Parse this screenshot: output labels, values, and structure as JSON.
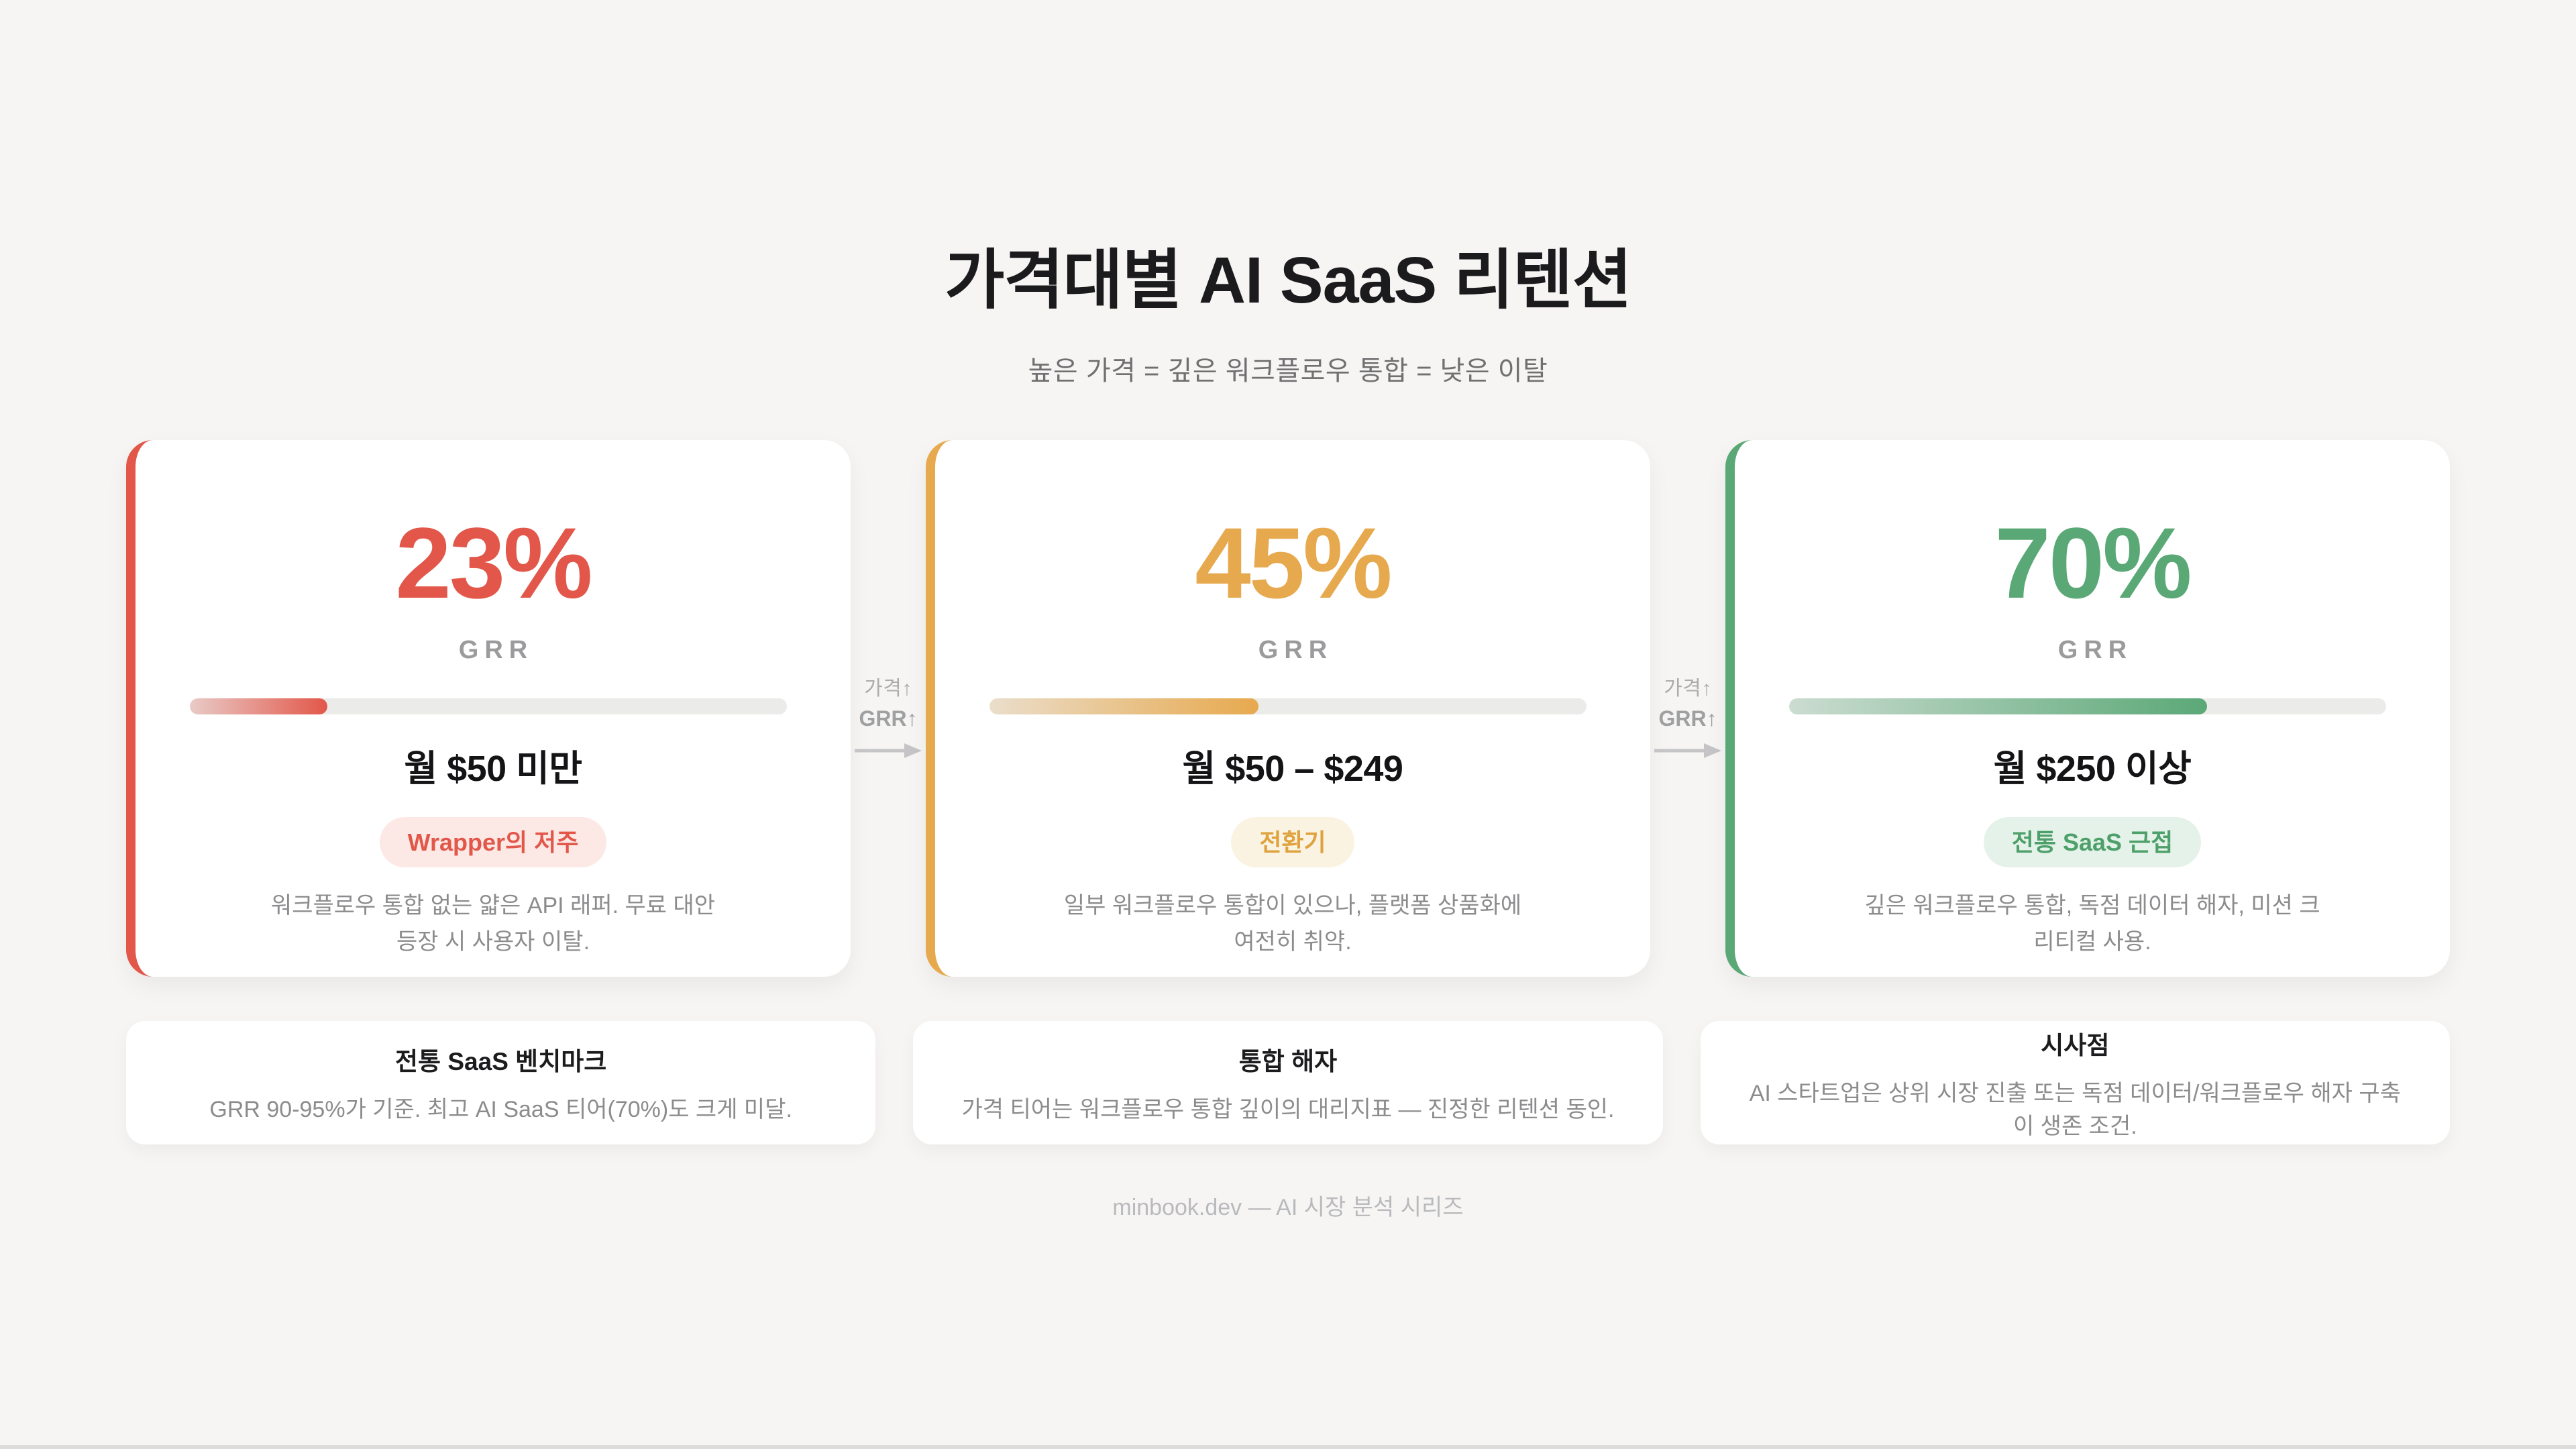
{
  "header": {
    "title": "가격대별 AI SaaS 리텐션",
    "subtitle": "높은 가격 = 깊은 워크플로우 통합 = 낮은 이탈"
  },
  "tiers": [
    {
      "grr_value": "23%",
      "grr_label": "GRR",
      "progress_pct": 23,
      "price": "월 $50 미만",
      "badge": "Wrapper의 저주",
      "description": "워크플로우 통합 없는 얇은 API 래퍼. 무료 대안 등장 시 사용자 이탈.",
      "accent_color": "#E2574A",
      "badge_bg": "#FCE9E5"
    },
    {
      "grr_value": "45%",
      "grr_label": "GRR",
      "progress_pct": 45,
      "price": "월 $50 – $249",
      "badge": "전환기",
      "description": "일부 워크플로우 통합이 있으나, 플랫폼 상품화에 여전히 취약.",
      "accent_color": "#E7A94E",
      "badge_bg": "#FAF3E1"
    },
    {
      "grr_value": "70%",
      "grr_label": "GRR",
      "progress_pct": 70,
      "price": "월 $250 이상",
      "badge": "전통 SaaS 근접",
      "description": "깊은 워크플로우 통합, 독점 데이터 해자, 미션 크리티컬 사용.",
      "accent_color": "#5BA877",
      "badge_bg": "#E5F2E9"
    }
  ],
  "connector": {
    "line1": "가격↑",
    "line2": "GRR↑"
  },
  "insights": [
    {
      "title": "전통 SaaS 벤치마크",
      "body": "GRR 90-95%가 기준. 최고 AI SaaS 티어(70%)도 크게 미달."
    },
    {
      "title": "통합 해자",
      "body": "가격 티어는 워크플로우 통합 깊이의 대리지표 — 진정한 리텐션 동인."
    },
    {
      "title": "시사점",
      "body": "AI 스타트업은 상위 시장 진출 또는 독점 데이터/워크플로우 해자 구축이 생존 조건."
    }
  ],
  "footer": "minbook.dev — AI 시장 분석 시리즈",
  "colors": {
    "background": "#F6F5F3",
    "card": "#FFFFFF",
    "red": "#E2574A",
    "amber": "#E7A94E",
    "green": "#5BA877",
    "track": "#EBEBEA",
    "text_dark": "#1B1B1D",
    "text_gray": "#8C8C8E"
  },
  "chart_data": {
    "type": "bar",
    "title": "가격대별 AI SaaS 리텐션",
    "subtitle": "높은 가격 = 깊은 워크플로우 통합 = 낮은 이탈",
    "categories": [
      "월 $50 미만",
      "월 $50 – $249",
      "월 $250 이상"
    ],
    "values": [
      23,
      45,
      70
    ],
    "unit": "% GRR",
    "ylim": [
      0,
      100
    ],
    "annotations": [
      "Wrapper의 저주",
      "전환기",
      "전통 SaaS 근접"
    ],
    "benchmark_note": "전통 SaaS GRR 90-95%",
    "legend_position": "none",
    "grid": false
  }
}
